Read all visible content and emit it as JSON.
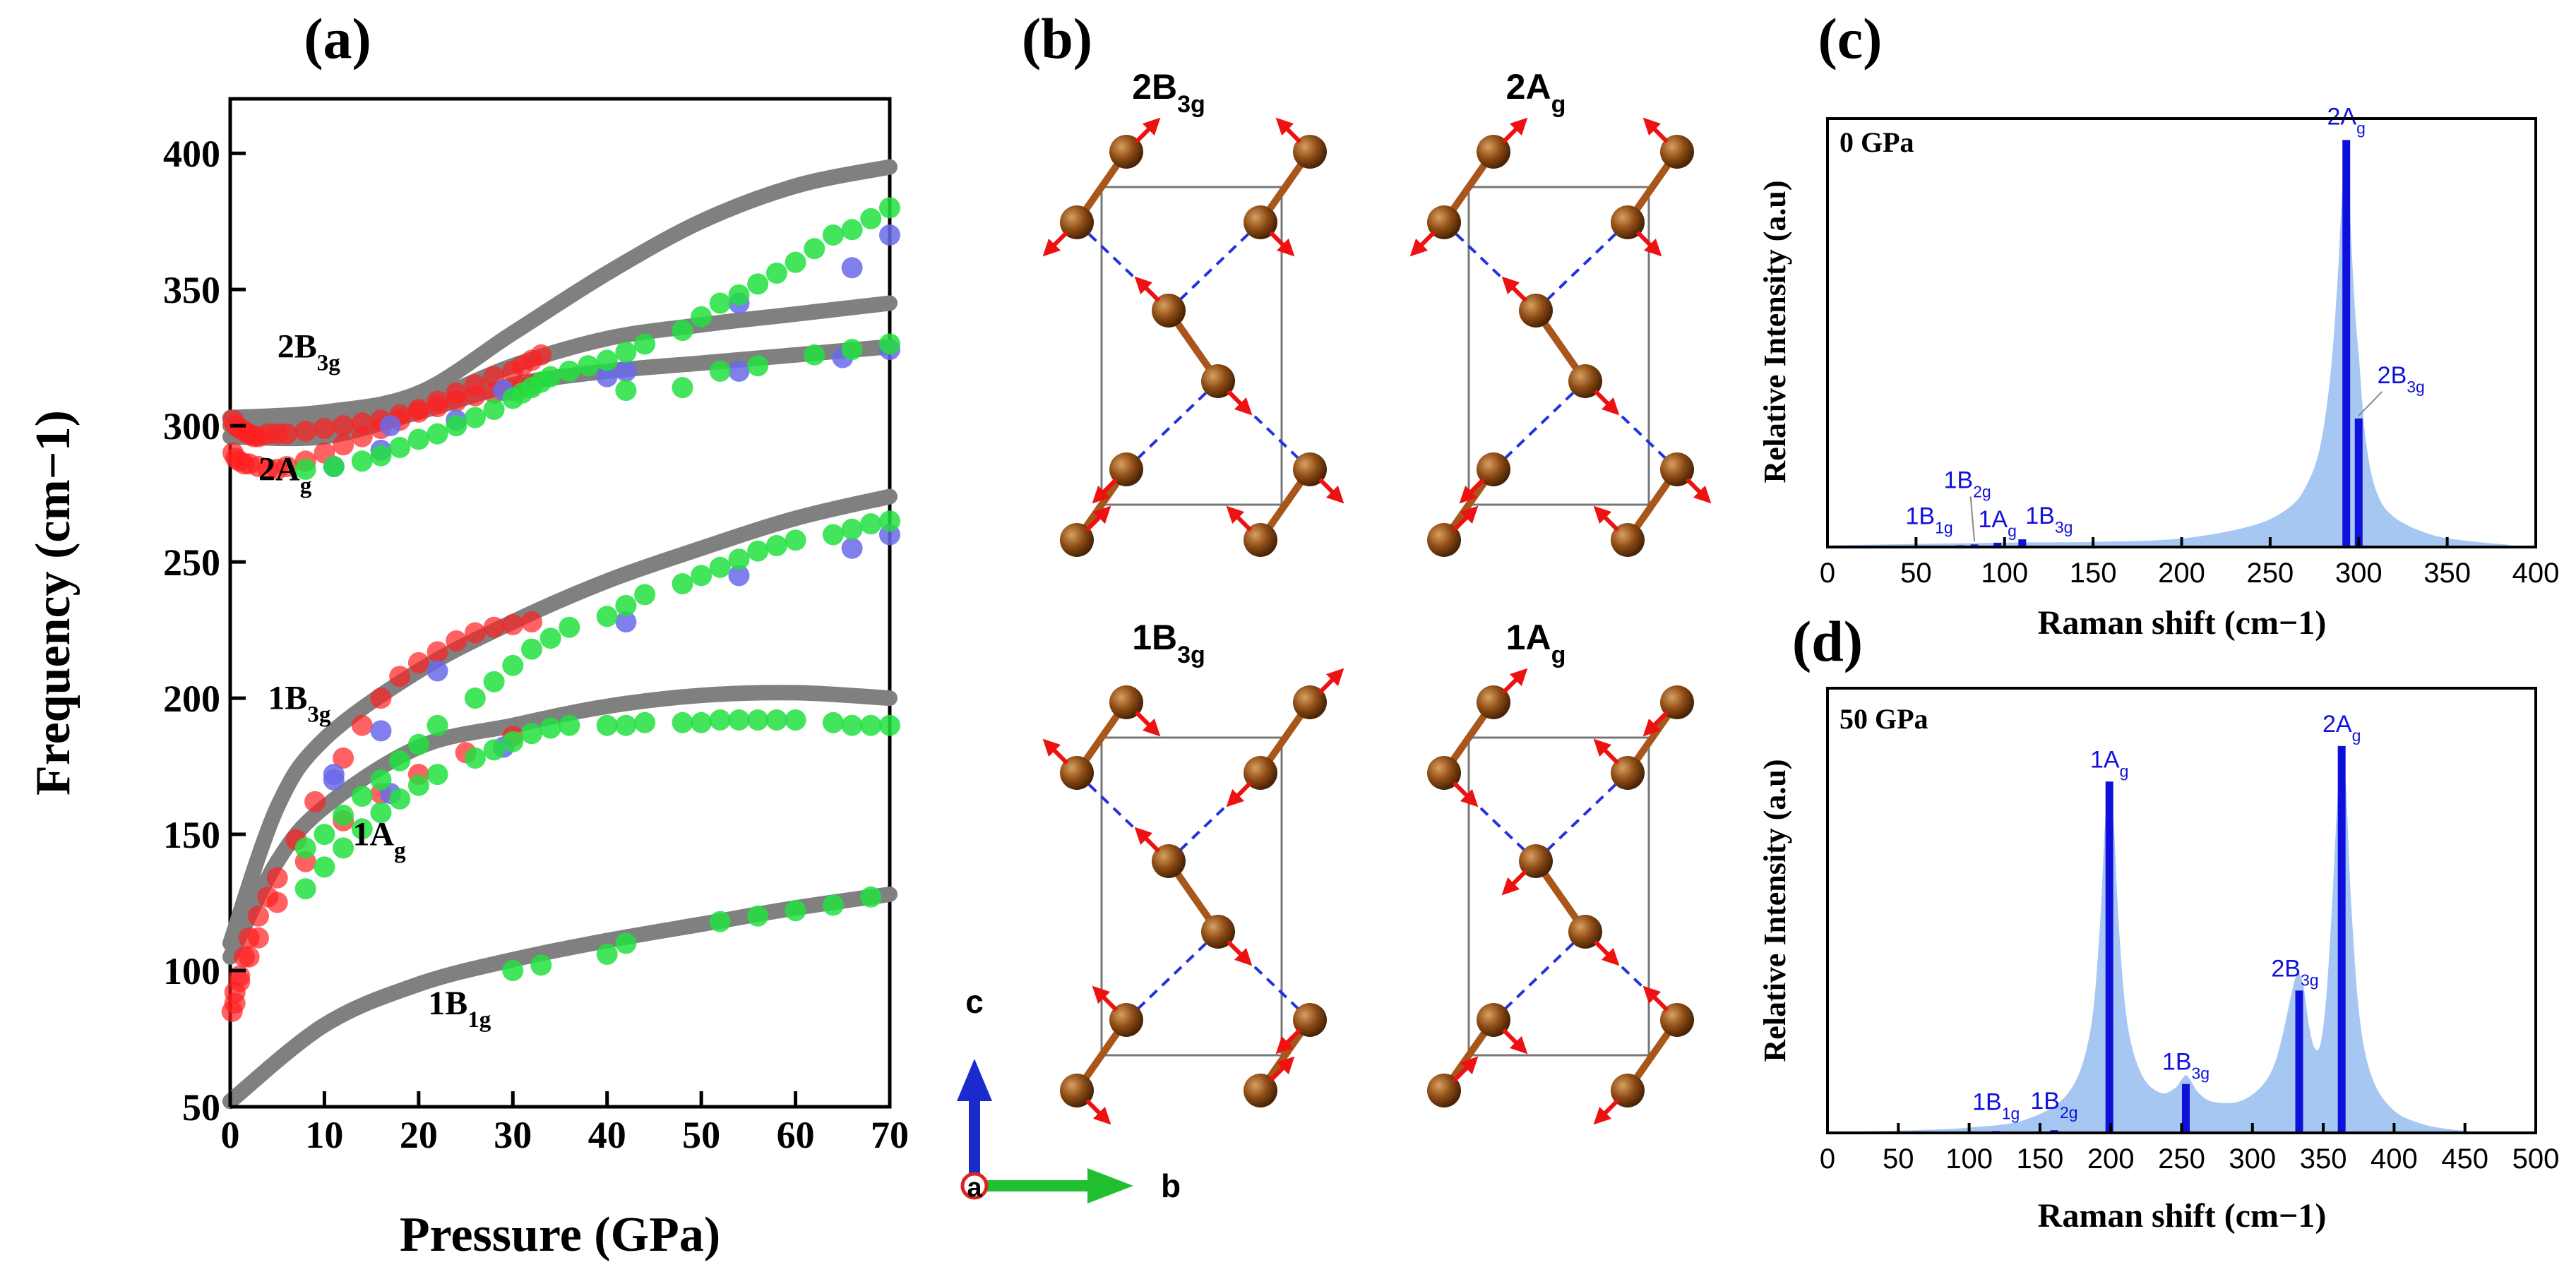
{
  "panels": {
    "a": "(a)",
    "b": "(b)",
    "c": "(c)",
    "d": "(d)"
  },
  "chart_data": [
    {
      "id": "a",
      "type": "scatter",
      "title": "",
      "xlabel": "Pressure (GPa)",
      "ylabel": "Frequency (cm−1)",
      "xlim": [
        0,
        70
      ],
      "ylim": [
        50,
        420
      ],
      "xticks": [
        0,
        10,
        20,
        30,
        40,
        50,
        60,
        70
      ],
      "yticks": [
        50,
        100,
        150,
        200,
        250,
        300,
        350,
        400
      ],
      "fit_color": "#808080",
      "fits": [
        {
          "name": "2B3g-high",
          "x": [
            0,
            10,
            20,
            30,
            40,
            50,
            60,
            70
          ],
          "values": [
            303,
            305,
            312,
            334,
            356,
            375,
            388,
            395
          ]
        },
        {
          "name": "2B3g",
          "x": [
            0,
            10,
            20,
            30,
            40,
            50,
            60,
            70
          ],
          "values": [
            300,
            300,
            308,
            322,
            332,
            337,
            341,
            345
          ]
        },
        {
          "name": "2Ag",
          "x": [
            0,
            10,
            20,
            30,
            40,
            50,
            60,
            70
          ],
          "values": [
            296,
            296,
            305,
            315,
            320,
            323,
            326,
            329
          ]
        },
        {
          "name": "1B3g",
          "x": [
            0,
            5,
            10,
            20,
            30,
            40,
            50,
            60,
            70
          ],
          "values": [
            110,
            160,
            185,
            210,
            228,
            243,
            255,
            266,
            274
          ]
        },
        {
          "name": "1Ag",
          "x": [
            0,
            5,
            10,
            20,
            30,
            40,
            50,
            60,
            70
          ],
          "values": [
            105,
            140,
            160,
            182,
            190,
            197,
            201,
            202,
            200
          ]
        },
        {
          "name": "1B1g",
          "x": [
            0,
            10,
            20,
            30,
            40,
            50,
            60,
            70
          ],
          "values": [
            52,
            80,
            95,
            104,
            111,
            117,
            123,
            128
          ]
        }
      ],
      "series": [
        {
          "name": "red",
          "color": "#ff2020",
          "x": [
            0.3,
            0.6,
            1,
            1.5,
            2,
            2.5,
            3,
            4,
            5,
            6,
            8,
            10,
            12,
            14,
            16,
            18,
            20,
            22,
            24,
            26,
            28,
            30,
            31,
            32,
            33,
            0.3,
            0.6,
            1,
            1.5,
            2,
            3,
            4,
            5,
            6,
            8,
            10,
            12,
            14,
            16,
            18,
            20,
            22,
            24,
            26,
            28,
            30,
            31,
            32,
            0.2,
            0.5,
            1,
            1.5,
            2,
            3,
            4,
            5,
            7,
            9,
            12,
            14,
            16,
            18,
            20,
            22,
            24,
            26,
            28,
            30,
            32,
            0.5,
            1,
            2,
            3,
            5,
            8,
            12,
            16,
            20,
            25,
            30
          ],
          "values": [
            302,
            300,
            299,
            298,
            297,
            296,
            296,
            297,
            297,
            297,
            298,
            299,
            300,
            301,
            302,
            304,
            306,
            309,
            312,
            315,
            318,
            320,
            322,
            324,
            326,
            290,
            288,
            287,
            286,
            286,
            285,
            284,
            284,
            285,
            287,
            290,
            293,
            296,
            299,
            302,
            305,
            307,
            309,
            311,
            312,
            313,
            314,
            315,
            85,
            92,
            98,
            105,
            112,
            120,
            127,
            134,
            148,
            162,
            178,
            190,
            200,
            208,
            213,
            217,
            221,
            224,
            226,
            227,
            228,
            88,
            96,
            105,
            112,
            125,
            140,
            155,
            165,
            172,
            180,
            186
          ]
        },
        {
          "name": "blue",
          "color": "#6a6aea",
          "x": [
            11,
            16,
            17,
            24,
            29,
            42,
            54,
            65,
            70,
            11,
            17,
            29,
            42,
            54,
            66,
            70,
            11,
            16,
            22,
            40,
            54,
            66,
            70
          ],
          "values": [
            285,
            291,
            300,
            302,
            313,
            320,
            320,
            325,
            328,
            170,
            165,
            182,
            228,
            245,
            255,
            260,
            172,
            188,
            210,
            318,
            345,
            358,
            370
          ]
        },
        {
          "name": "green",
          "color": "#22e040",
          "x": [
            8,
            11,
            14,
            16,
            18,
            20,
            22,
            24,
            26,
            28,
            30,
            31,
            32,
            33,
            34,
            36,
            38,
            40,
            42,
            44,
            48,
            50,
            52,
            54,
            56,
            58,
            60,
            62,
            64,
            66,
            68,
            70,
            8,
            10,
            12,
            14,
            16,
            18,
            20,
            22,
            26,
            28,
            30,
            32,
            34,
            36,
            40,
            42,
            44,
            48,
            50,
            52,
            54,
            56,
            58,
            60,
            64,
            66,
            68,
            70,
            8,
            10,
            12,
            14,
            16,
            18,
            20,
            22,
            26,
            28,
            30,
            32,
            34,
            36,
            40,
            42,
            44,
            48,
            50,
            52,
            54,
            56,
            58,
            60,
            64,
            66,
            68,
            70,
            30,
            33,
            40,
            42,
            52,
            56,
            60,
            64,
            68,
            42,
            48,
            52,
            56,
            62,
            66,
            70
          ],
          "values": [
            284,
            285,
            287,
            289,
            292,
            295,
            297,
            300,
            303,
            306,
            310,
            312,
            314,
            316,
            318,
            320,
            322,
            324,
            327,
            330,
            335,
            340,
            345,
            348,
            352,
            356,
            360,
            365,
            370,
            372,
            376,
            380,
            145,
            150,
            157,
            164,
            170,
            177,
            183,
            190,
            200,
            206,
            212,
            218,
            222,
            226,
            230,
            234,
            238,
            242,
            245,
            248,
            251,
            254,
            256,
            258,
            260,
            262,
            264,
            265,
            130,
            138,
            145,
            152,
            158,
            163,
            168,
            172,
            178,
            181,
            184,
            187,
            189,
            190,
            190,
            190,
            191,
            191,
            191,
            192,
            192,
            192,
            192,
            192,
            191,
            190,
            190,
            190,
            100,
            102,
            106,
            110,
            118,
            120,
            122,
            124,
            127,
            313,
            314,
            320,
            322,
            326,
            328,
            330
          ]
        }
      ],
      "annotations": [
        {
          "text": "2B3g",
          "x": 5,
          "y": 325
        },
        {
          "text": "2Ag",
          "x": 3,
          "y": 280
        },
        {
          "text": "1B3g",
          "x": 4,
          "y": 196
        },
        {
          "text": "1Ag",
          "x": 13,
          "y": 146
        },
        {
          "text": "1B1g",
          "x": 21,
          "y": 84
        }
      ]
    },
    {
      "id": "c",
      "type": "area",
      "title": "0 GPa",
      "xlabel": "Raman shift (cm−1)",
      "ylabel": "Relative Intensity (a.u)",
      "xlim": [
        0,
        400
      ],
      "ylim": [
        0,
        1
      ],
      "xticks": [
        0,
        50,
        100,
        150,
        200,
        250,
        300,
        350,
        400
      ],
      "fill_color": "#a7c7f3",
      "line_color": "#1010dd",
      "peaks": [
        {
          "label": "1B1g",
          "x": 75,
          "value": 0.004
        },
        {
          "label": "1B2g",
          "x": 83,
          "value": 0.006
        },
        {
          "label": "1Ag",
          "x": 96,
          "value": 0.01
        },
        {
          "label": "1B3g",
          "x": 110,
          "value": 0.018
        },
        {
          "label": "2Ag",
          "x": 293,
          "value": 0.95
        },
        {
          "label": "2B3g",
          "x": 300,
          "value": 0.3
        }
      ],
      "envelope_x": [
        0,
        100,
        150,
        200,
        240,
        260,
        270,
        278,
        284,
        288,
        290,
        292,
        293,
        294,
        296,
        298,
        300,
        304,
        310,
        320,
        340,
        360,
        385
      ],
      "envelope_values": [
        0.004,
        0.01,
        0.012,
        0.02,
        0.05,
        0.09,
        0.14,
        0.23,
        0.4,
        0.62,
        0.78,
        0.92,
        0.95,
        0.9,
        0.7,
        0.55,
        0.45,
        0.25,
        0.13,
        0.07,
        0.03,
        0.015,
        0.005
      ]
    },
    {
      "id": "d",
      "type": "area",
      "title": "50 GPa",
      "xlabel": "Raman shift (cm−1)",
      "ylabel": "Relative Intensity (a.u)",
      "xlim": [
        0,
        500
      ],
      "ylim": [
        0,
        1
      ],
      "xticks": [
        0,
        50,
        100,
        150,
        200,
        250,
        300,
        350,
        400,
        450,
        500
      ],
      "fill_color": "#a7c7f3",
      "line_color": "#1010dd",
      "peaks": [
        {
          "label": "1B1g",
          "x": 119,
          "value": 0.004
        },
        {
          "label": "1B2g",
          "x": 160,
          "value": 0.006
        },
        {
          "label": "1Ag",
          "x": 199,
          "value": 0.79
        },
        {
          "label": "1B3g",
          "x": 253,
          "value": 0.11
        },
        {
          "label": "2B3g",
          "x": 333,
          "value": 0.32
        },
        {
          "label": "2Ag",
          "x": 363,
          "value": 0.87
        }
      ],
      "envelope_x": [
        0,
        60,
        100,
        140,
        170,
        185,
        192,
        196,
        199,
        202,
        206,
        212,
        222,
        235,
        245,
        250,
        253,
        256,
        262,
        272,
        290,
        305,
        315,
        322,
        328,
        332,
        336,
        340,
        344,
        348,
        352,
        356,
        360,
        363,
        366,
        370,
        376,
        385,
        400,
        420,
        440,
        460
      ],
      "envelope_values": [
        0.002,
        0.006,
        0.012,
        0.03,
        0.09,
        0.22,
        0.45,
        0.7,
        0.79,
        0.7,
        0.45,
        0.24,
        0.13,
        0.09,
        0.1,
        0.12,
        0.13,
        0.12,
        0.09,
        0.07,
        0.07,
        0.1,
        0.15,
        0.23,
        0.32,
        0.36,
        0.33,
        0.24,
        0.19,
        0.2,
        0.3,
        0.5,
        0.75,
        0.87,
        0.78,
        0.5,
        0.25,
        0.12,
        0.05,
        0.02,
        0.008,
        0.002
      ]
    }
  ],
  "structures": {
    "modes": [
      {
        "main": "2B",
        "sub": "3g"
      },
      {
        "main": "2A",
        "sub": "g"
      },
      {
        "main": "1B",
        "sub": "3g"
      },
      {
        "main": "1A",
        "sub": "g"
      }
    ],
    "axes": {
      "c": "c",
      "a": "a",
      "b": "b"
    }
  }
}
